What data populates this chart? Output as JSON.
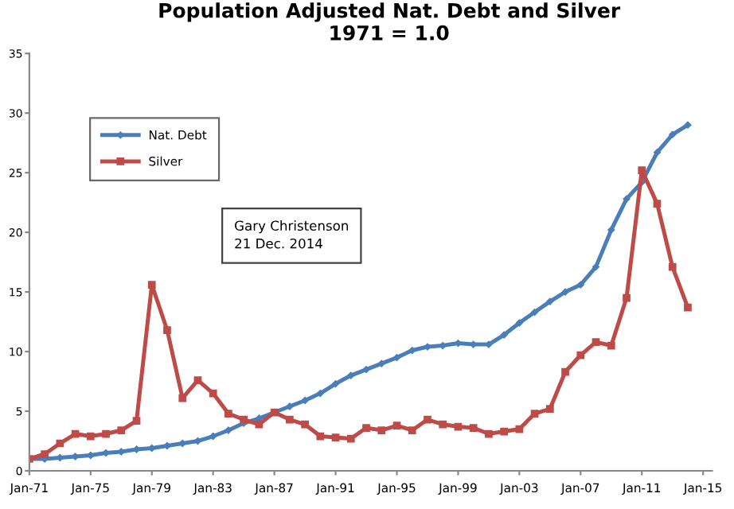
{
  "chart_data": {
    "type": "line",
    "title": "Population Adjusted Nat. Debt and Silver\n1971 = 1.0",
    "x": [
      "1971-01",
      "1972-01",
      "1973-01",
      "1974-01",
      "1975-01",
      "1976-01",
      "1977-01",
      "1978-01",
      "1979-01",
      "1980-01",
      "1981-01",
      "1982-01",
      "1983-01",
      "1984-01",
      "1985-01",
      "1986-01",
      "1987-01",
      "1988-01",
      "1989-01",
      "1990-01",
      "1991-01",
      "1992-01",
      "1993-01",
      "1994-01",
      "1995-01",
      "1996-01",
      "1997-01",
      "1998-01",
      "1999-01",
      "2000-01",
      "2001-01",
      "2002-01",
      "2003-01",
      "2004-01",
      "2005-01",
      "2006-01",
      "2007-01",
      "2008-01",
      "2009-01",
      "2010-01",
      "2011-01",
      "2012-01",
      "2013-01",
      "2014-01"
    ],
    "series": [
      {
        "name": "Nat. Debt",
        "color": "#4a7ebb",
        "marker": "diamond",
        "values": [
          1.0,
          1.0,
          1.1,
          1.2,
          1.3,
          1.5,
          1.6,
          1.8,
          1.9,
          2.1,
          2.3,
          2.5,
          2.9,
          3.4,
          4.0,
          4.4,
          4.9,
          5.4,
          5.9,
          6.5,
          7.3,
          8.0,
          8.5,
          9.0,
          9.5,
          10.1,
          10.4,
          10.5,
          10.7,
          10.6,
          10.6,
          11.4,
          12.4,
          13.3,
          14.2,
          15.0,
          15.6,
          17.1,
          20.2,
          22.8,
          24.2,
          26.7,
          28.2,
          29.0
        ]
      },
      {
        "name": "Silver",
        "color": "#be4b48",
        "marker": "square",
        "values": [
          1.0,
          1.4,
          2.3,
          3.1,
          2.9,
          3.1,
          3.4,
          4.2,
          15.6,
          11.8,
          6.1,
          7.6,
          6.5,
          4.8,
          4.3,
          3.9,
          4.9,
          4.3,
          3.9,
          2.9,
          2.8,
          2.7,
          3.6,
          3.4,
          3.8,
          3.4,
          4.3,
          3.9,
          3.7,
          3.6,
          3.1,
          3.3,
          3.5,
          4.8,
          5.2,
          8.3,
          9.7,
          10.8,
          10.5,
          14.5,
          25.2,
          22.4,
          17.1,
          13.7
        ]
      }
    ],
    "xlim": [
      "1971-01",
      "2015-08"
    ],
    "xticks": [
      {
        "value": "1971-01",
        "label": "Jan-71"
      },
      {
        "value": "1975-01",
        "label": "Jan-75"
      },
      {
        "value": "1979-01",
        "label": "Jan-79"
      },
      {
        "value": "1983-01",
        "label": "Jan-83"
      },
      {
        "value": "1987-01",
        "label": "Jan-87"
      },
      {
        "value": "1991-01",
        "label": "Jan-91"
      },
      {
        "value": "1995-01",
        "label": "Jan-95"
      },
      {
        "value": "1999-01",
        "label": "Jan-99"
      },
      {
        "value": "2003-01",
        "label": "Jan-03"
      },
      {
        "value": "2007-01",
        "label": "Jan-07"
      },
      {
        "value": "2011-01",
        "label": "Jan-11"
      },
      {
        "value": "2015-01",
        "label": "Jan-15"
      }
    ],
    "ylim": [
      0,
      35
    ],
    "yticks": [
      0,
      5,
      10,
      15,
      20,
      25,
      30,
      35
    ],
    "grid": false,
    "legend": "top left",
    "line_style": "solid",
    "annotations": [
      "Gary Christenson\n21 Dec. 2014"
    ]
  }
}
